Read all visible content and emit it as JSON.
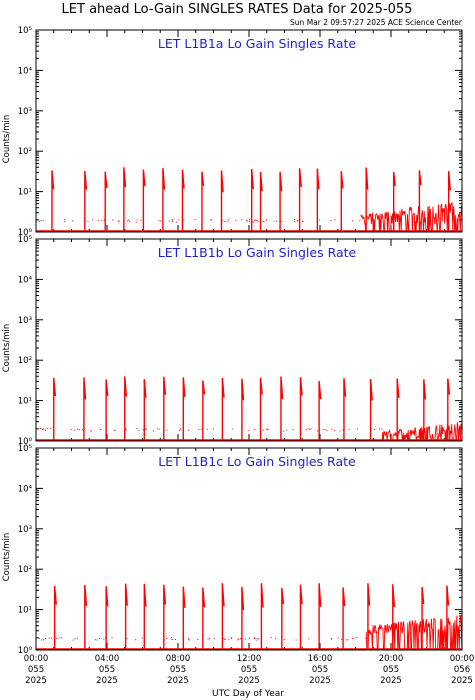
{
  "figure": {
    "title": "LET ahead Lo-Gain SINGLES RATES Data for 2025-055",
    "timestamp": "Sun Mar  2 09:57:27 2025 ACE Science Center",
    "xlabel": "UTC Day of Year",
    "ylabel": "Counts/min"
  },
  "colors": {
    "series": "#ff0000",
    "panel_title": "#1f1fd6",
    "axes": "#000000"
  },
  "chart_data": [
    {
      "type": "line",
      "title": "LET L1B1a Lo Gain Singles Rate",
      "ylabel": "Counts/min",
      "xlabel": "",
      "yscale": "log",
      "ylim": [
        1,
        100000
      ],
      "xlim": [
        0,
        24
      ],
      "x_unit": "hours UTC, day 055 2025",
      "y_tick_labels": [
        "10⁰",
        "10¹",
        "10²",
        "10³",
        "10⁴",
        "10⁵"
      ],
      "spike_hours": [
        0.9,
        2.75,
        3.9,
        4.95,
        6.05,
        7.15,
        8.25,
        9.35,
        10.45,
        12.15,
        12.65,
        13.75,
        14.85,
        15.85,
        17.2,
        18.6,
        20.15,
        21.6,
        23.25
      ],
      "spike_top": 35,
      "baseline": 1,
      "noise_start_hour": 18.3,
      "noise_level_range": [
        1.5,
        4.5
      ]
    },
    {
      "type": "line",
      "title": "LET L1B1b Lo Gain Singles Rate",
      "ylabel": "Counts/min",
      "xlabel": "",
      "yscale": "log",
      "ylim": [
        1,
        100000
      ],
      "xlim": [
        0,
        24
      ],
      "x_unit": "hours UTC, day 055 2025",
      "y_tick_labels": [
        "10⁰",
        "10¹",
        "10²",
        "10³",
        "10⁴",
        "10⁵"
      ],
      "spike_hours": [
        1.0,
        2.7,
        3.95,
        5.0,
        6.1,
        7.2,
        8.3,
        9.4,
        10.5,
        11.6,
        12.65,
        13.8,
        14.9,
        15.95,
        17.35,
        18.85,
        20.35,
        21.85,
        23.2
      ],
      "spike_top": 35,
      "baseline": 1,
      "noise_start_hour": 19.5,
      "noise_level_range": [
        1.2,
        2.5
      ]
    },
    {
      "type": "line",
      "title": "LET L1B1c Lo Gain Singles Rate",
      "ylabel": "Counts/min",
      "xlabel": "UTC Day of Year",
      "yscale": "log",
      "ylim": [
        1,
        100000
      ],
      "xlim": [
        0,
        24
      ],
      "x_unit": "hours UTC, day 055 2025",
      "y_tick_labels": [
        "10⁰",
        "10¹",
        "10²",
        "10³",
        "10⁴",
        "10⁵"
      ],
      "spike_hours": [
        1.05,
        2.75,
        3.95,
        5.05,
        6.1,
        7.2,
        8.3,
        9.4,
        10.5,
        11.6,
        12.7,
        13.85,
        14.9,
        15.95,
        17.3,
        18.7,
        20.1,
        21.75,
        23.15
      ],
      "spike_top": 40,
      "baseline": 1,
      "noise_start_hour": 18.6,
      "noise_level_range": [
        2.5,
        6
      ]
    }
  ],
  "x_ticks": [
    {
      "time": "00:00",
      "day": "055",
      "year": "2025"
    },
    {
      "time": "04:00",
      "day": "055",
      "year": "2025"
    },
    {
      "time": "08:00",
      "day": "055",
      "year": "2025"
    },
    {
      "time": "12:00",
      "day": "055",
      "year": "2025"
    },
    {
      "time": "16:00",
      "day": "055",
      "year": "2025"
    },
    {
      "time": "20:00",
      "day": "055",
      "year": "2025"
    },
    {
      "time": "00:00",
      "day": "056",
      "year": "2025"
    }
  ]
}
